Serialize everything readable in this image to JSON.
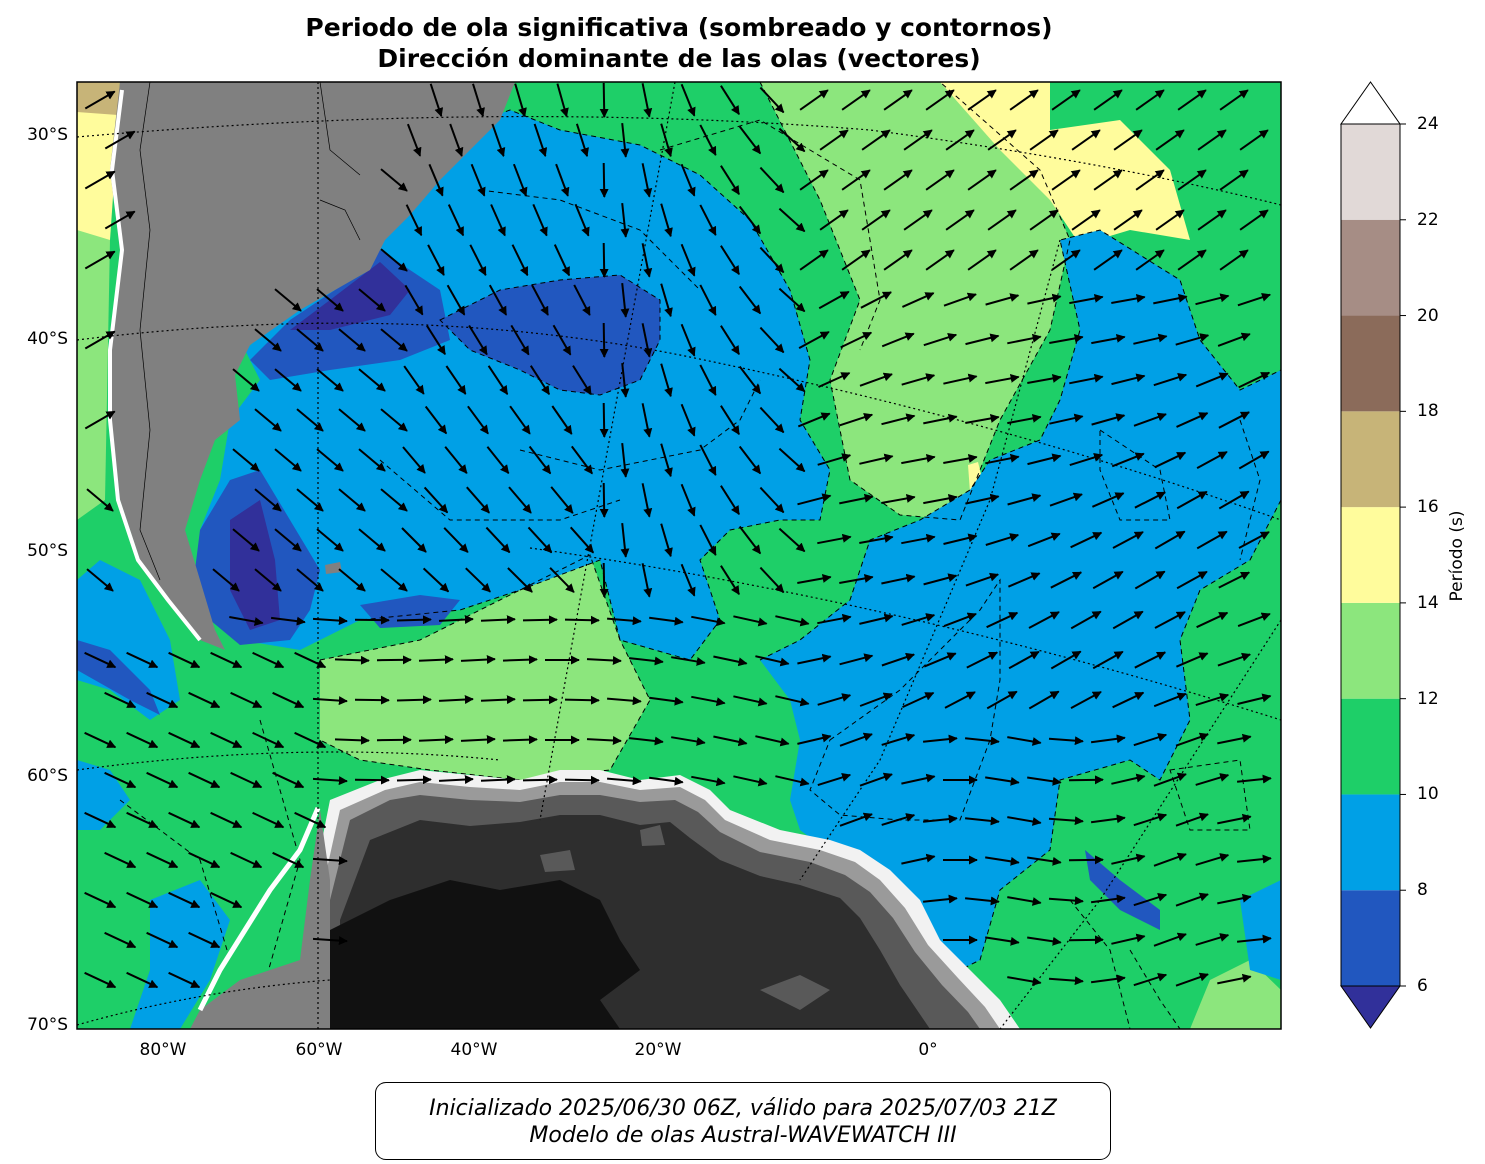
{
  "title": {
    "line1": "Periodo de ola significativa (sombreado y contornos)",
    "line2": "Dirección dominante de las olas (vectores)"
  },
  "lat_labels": [
    "30°S",
    "40°S",
    "50°S",
    "60°S",
    "70°S"
  ],
  "lon_labels": [
    "80°W",
    "60°W",
    "40°W",
    "20°W",
    "0°"
  ],
  "colorbar": {
    "label": "Período (s)",
    "ticks": [
      "6",
      "8",
      "10",
      "12",
      "14",
      "16",
      "18",
      "20",
      "22",
      "24"
    ],
    "bands": [
      {
        "from": 6,
        "to": 8,
        "color": "#2157bf"
      },
      {
        "from": 8,
        "to": 10,
        "color": "#00a0e6"
      },
      {
        "from": 10,
        "to": 12,
        "color": "#1ecf68"
      },
      {
        "from": 12,
        "to": 14,
        "color": "#8ce67d"
      },
      {
        "from": 14,
        "to": 16,
        "color": "#fffc9c"
      },
      {
        "from": 16,
        "to": 18,
        "color": "#c7b478"
      },
      {
        "from": 18,
        "to": 20,
        "color": "#8b6b5a"
      },
      {
        "from": 20,
        "to": 22,
        "color": "#a68d85"
      },
      {
        "from": 22,
        "to": 24,
        "color": "#e1d9d7"
      }
    ],
    "under_color": "#31309a",
    "over_color": "#ffffff"
  },
  "colors": {
    "land": "#808080",
    "ice_dark": "#111111",
    "ice_mid": "#2e2e2e",
    "ice_light": "#595959"
  },
  "footer": {
    "line1": "Inicializado 2025/06/30 06Z, válido para 2025/07/03 21Z",
    "line2": "Modelo de olas Austral-WAVEWATCH III"
  }
}
